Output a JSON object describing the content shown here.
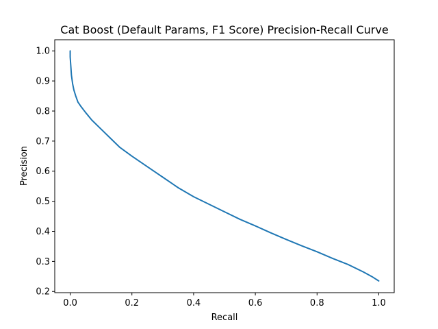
{
  "chart_data": {
    "type": "line",
    "title": "Cat Boost (Default Params, F1 Score) Precision-Recall Curve",
    "xlabel": "Recall",
    "ylabel": "Precision",
    "xlim": [
      -0.05,
      1.05
    ],
    "ylim": [
      0.196,
      1.037
    ],
    "xticks": [
      0.0,
      0.2,
      0.4,
      0.6,
      0.8,
      1.0
    ],
    "xtick_labels": [
      "0.0",
      "0.2",
      "0.4",
      "0.6",
      "0.8",
      "1.0"
    ],
    "yticks": [
      0.2,
      0.3,
      0.4,
      0.5,
      0.6,
      0.7,
      0.8,
      0.9,
      1.0
    ],
    "ytick_labels": [
      "0.2",
      "0.3",
      "0.4",
      "0.5",
      "0.6",
      "0.7",
      "0.8",
      "0.9",
      "1.0"
    ],
    "grid": false,
    "series": [
      {
        "color": "#1f77b4",
        "x": [
          0.0,
          0.0,
          0.002,
          0.004,
          0.008,
          0.012,
          0.018,
          0.025,
          0.035,
          0.05,
          0.07,
          0.1,
          0.13,
          0.16,
          0.2,
          0.25,
          0.3,
          0.35,
          0.4,
          0.45,
          0.5,
          0.55,
          0.6,
          0.65,
          0.7,
          0.75,
          0.8,
          0.85,
          0.9,
          0.95,
          0.98,
          1.0
        ],
        "y": [
          1.0,
          0.98,
          0.95,
          0.92,
          0.89,
          0.87,
          0.85,
          0.83,
          0.815,
          0.795,
          0.77,
          0.74,
          0.71,
          0.68,
          0.65,
          0.615,
          0.58,
          0.545,
          0.515,
          0.49,
          0.465,
          0.44,
          0.418,
          0.395,
          0.373,
          0.352,
          0.332,
          0.31,
          0.29,
          0.265,
          0.248,
          0.235
        ]
      }
    ]
  }
}
